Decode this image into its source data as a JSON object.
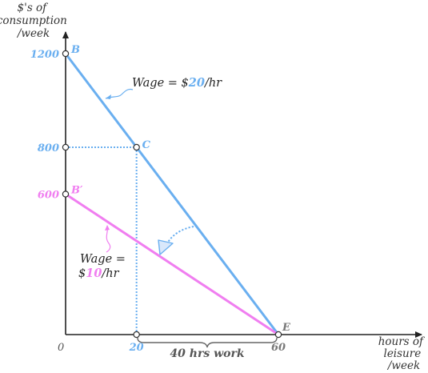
{
  "chart_data": {
    "type": "line",
    "ylabel_lines": [
      "$'s of",
      "consumption",
      "/week"
    ],
    "xlabel_lines": [
      "hours of",
      "leisure",
      "/week"
    ],
    "origin_label": "0",
    "xlim": [
      0,
      65
    ],
    "ylim": [
      0,
      1250
    ],
    "series": [
      {
        "points": [
          [
            0,
            1200
          ],
          [
            60,
            0
          ]
        ],
        "color": "#6aaff0"
      },
      {
        "points": [
          [
            0,
            600
          ],
          [
            60,
            0
          ]
        ],
        "color": "#f07ef0"
      }
    ],
    "y_ticks": [
      {
        "value": 1200,
        "label": "1200",
        "point": "B",
        "point_color": "#6aaff0"
      },
      {
        "value": 800,
        "label": "800",
        "point": "C",
        "point_color": "#6aaff0"
      },
      {
        "value": 600,
        "label": "600",
        "point": "B′",
        "point_color": "#f07ef0"
      }
    ],
    "x_ticks": [
      {
        "value": 20,
        "label": "20",
        "color": "#6aaff0"
      },
      {
        "value": 60,
        "label": "60",
        "color": "#777777"
      }
    ],
    "point_E": "E",
    "brace_label": "40 hrs work",
    "annotations": {
      "wage_high": {
        "prefix": "Wage = $",
        "num": "20",
        "suffix": "/hr",
        "num_color": "#6aaff0"
      },
      "wage_low": {
        "line1": "Wage =",
        "prefix": "$",
        "num": "10",
        "suffix": "/hr",
        "num_color": "#f07ef0"
      }
    }
  }
}
